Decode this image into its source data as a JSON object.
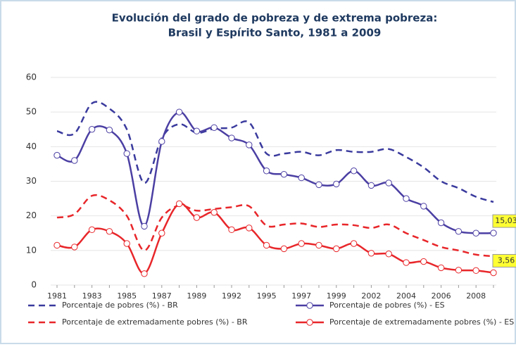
{
  "chart_data": {
    "type": "line",
    "title": "Evolución del grado de pobreza y de extrema pobreza:",
    "subtitle": "Brasil y Espírito Santo, 1981 a 2009",
    "categories": [
      "1981",
      null,
      "1983",
      null,
      "1985",
      null,
      "1987",
      null,
      "1989",
      null,
      "1992",
      null,
      "1995",
      null,
      "1997",
      null,
      "1999",
      null,
      "2002",
      null,
      "2004",
      null,
      "2006",
      null,
      "2008",
      null
    ],
    "ylim": [
      0,
      60
    ],
    "yticks": [
      0,
      10,
      20,
      30,
      40,
      50,
      60
    ],
    "series": [
      {
        "name": "Porcentaje de pobres (%) - BR",
        "color": "#3a3a9e",
        "dashed": true,
        "markers": false,
        "values": [
          44.5,
          43.8,
          52.5,
          51,
          45,
          29.5,
          42.5,
          46.5,
          44,
          45.2,
          45.5,
          47,
          38,
          38,
          38.5,
          37.5,
          39,
          38.5,
          38.5,
          39.3,
          37,
          34,
          30,
          28,
          25.5,
          24
        ]
      },
      {
        "name": "Porcentaje de pobres (%) - ES",
        "color": "#4b3fa3",
        "dashed": false,
        "markers": true,
        "values": [
          37.5,
          36,
          45,
          44.8,
          38,
          17,
          41.5,
          50,
          44.5,
          45.5,
          42.5,
          40.5,
          33,
          32,
          31,
          29,
          29.2,
          33,
          28.8,
          29.5,
          25,
          22.8,
          18,
          15.5,
          15,
          15.03
        ],
        "value_labels": [
          null,
          null,
          null,
          null,
          null,
          null,
          null,
          null,
          null,
          null,
          null,
          null,
          null,
          null,
          null,
          null,
          null,
          null,
          null,
          null,
          null,
          null,
          null,
          null,
          null,
          "15,03"
        ]
      },
      {
        "name": "Porcentaje de extremadamente pobres (%) - BR",
        "color": "#e8262a",
        "dashed": true,
        "markers": false,
        "values": [
          19.5,
          20.5,
          25.8,
          24.5,
          20,
          10,
          19.5,
          23,
          21.5,
          22,
          22.5,
          22.8,
          17.2,
          17.5,
          17.8,
          16.8,
          17.5,
          17.3,
          16.5,
          17.5,
          15,
          13,
          11,
          10,
          8.8,
          8.3
        ]
      },
      {
        "name": "Porcentaje de extremadamente pobres (%) - ES",
        "color": "#e8262a",
        "dashed": false,
        "markers": true,
        "values": [
          11.5,
          11,
          16,
          15.5,
          12,
          3.3,
          15,
          23.5,
          19.5,
          21,
          16,
          16.5,
          11.5,
          10.5,
          12,
          11.5,
          10.5,
          12,
          9.2,
          9,
          6.5,
          6.8,
          5,
          4.3,
          4.2,
          3.56
        ],
        "value_labels": [
          null,
          null,
          null,
          null,
          null,
          null,
          null,
          null,
          null,
          null,
          null,
          null,
          null,
          null,
          null,
          null,
          null,
          null,
          null,
          null,
          null,
          null,
          null,
          null,
          null,
          "3,56"
        ]
      }
    ]
  }
}
